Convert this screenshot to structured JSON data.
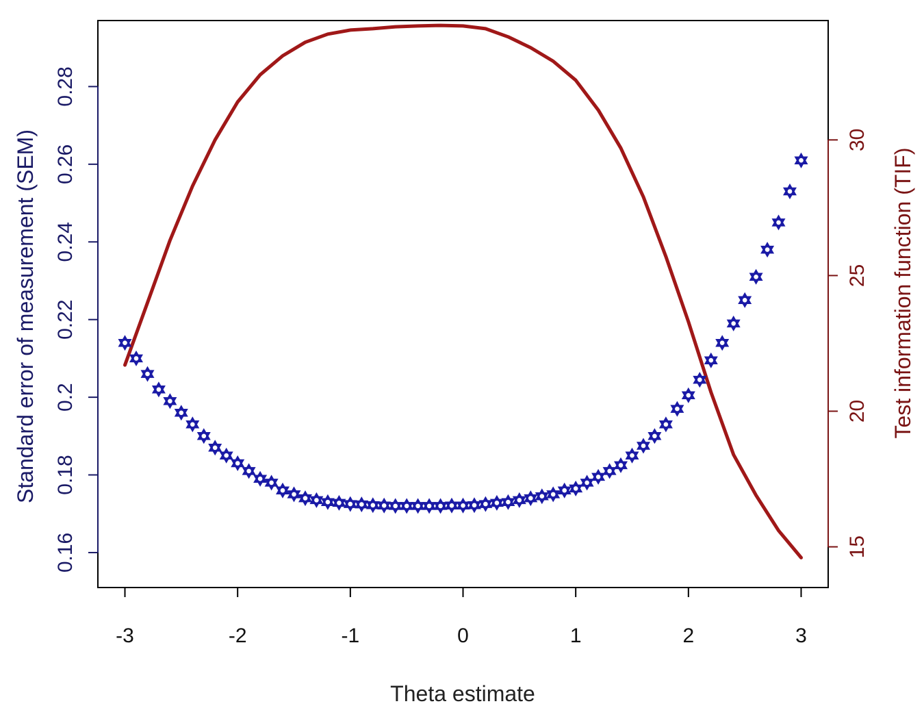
{
  "chart_data": {
    "type": "line",
    "title": "",
    "xlabel": "Theta estimate",
    "ylabel_left": "Standard error of measurement (SEM)",
    "ylabel_right": "Test information function (TIF)",
    "xlim": [
      -3.24,
      3.24
    ],
    "ylim_left": [
      0.151,
      0.297
    ],
    "ylim_right": [
      13.5,
      34.4
    ],
    "x_ticks": [
      -3,
      -2,
      -1,
      0,
      1,
      2,
      3
    ],
    "x_tick_labels": [
      "-3",
      "-2",
      "-1",
      "0",
      "1",
      "2",
      "3"
    ],
    "y_left_ticks": [
      0.16,
      0.18,
      0.2,
      0.22,
      0.24,
      0.26,
      0.28
    ],
    "y_left_tick_labels": [
      "0.16",
      "0.18",
      "0.2",
      "0.22",
      "0.24",
      "0.26",
      "0.28"
    ],
    "y_right_ticks": [
      15,
      20,
      25,
      30
    ],
    "y_right_tick_labels": [
      "15",
      "20",
      "25",
      "30"
    ],
    "colors": {
      "sem": "#1a1aa6",
      "tif": "#a01818",
      "left_axis": "#1a1a66",
      "right_axis": "#7a1414",
      "frame": "#000000"
    },
    "series": [
      {
        "axis": "left",
        "style": "points",
        "x": [
          -3.0,
          -2.9,
          -2.8,
          -2.7,
          -2.6,
          -2.5,
          -2.4,
          -2.3,
          -2.2,
          -2.1,
          -2.0,
          -1.9,
          -1.8,
          -1.7,
          -1.6,
          -1.5,
          -1.4,
          -1.3,
          -1.2,
          -1.1,
          -1.0,
          -0.9,
          -0.8,
          -0.7,
          -0.6,
          -0.5,
          -0.4,
          -0.3,
          -0.2,
          -0.1,
          0.0,
          0.1,
          0.2,
          0.3,
          0.4,
          0.5,
          0.6,
          0.7,
          0.8,
          0.9,
          1.0,
          1.1,
          1.2,
          1.3,
          1.4,
          1.5,
          1.6,
          1.7,
          1.8,
          1.9,
          2.0,
          2.1,
          2.2,
          2.3,
          2.4,
          2.5,
          2.6,
          2.7,
          2.8,
          2.9,
          3.0
        ],
        "y": [
          0.214,
          0.21,
          0.206,
          0.202,
          0.199,
          0.196,
          0.193,
          0.19,
          0.187,
          0.185,
          0.183,
          0.181,
          0.179,
          0.178,
          0.176,
          0.175,
          0.174,
          0.1735,
          0.173,
          0.1728,
          0.1725,
          0.1724,
          0.1722,
          0.1721,
          0.172,
          0.172,
          0.172,
          0.172,
          0.172,
          0.1721,
          0.1721,
          0.1722,
          0.1725,
          0.1728,
          0.173,
          0.1735,
          0.174,
          0.1745,
          0.175,
          0.176,
          0.1765,
          0.178,
          0.1795,
          0.181,
          0.1825,
          0.185,
          0.1875,
          0.19,
          0.193,
          0.197,
          0.2005,
          0.2045,
          0.2095,
          0.214,
          0.219,
          0.225,
          0.231,
          0.238,
          0.245,
          0.253,
          0.261
        ]
      },
      {
        "axis": "right",
        "style": "line",
        "x": [
          -3.0,
          -2.8,
          -2.6,
          -2.4,
          -2.2,
          -2.0,
          -1.8,
          -1.6,
          -1.4,
          -1.2,
          -1.0,
          -0.8,
          -0.6,
          -0.4,
          -0.2,
          0.0,
          0.2,
          0.4,
          0.6,
          0.8,
          1.0,
          1.2,
          1.4,
          1.6,
          1.8,
          2.0,
          2.2,
          2.4,
          2.6,
          2.8,
          3.0
        ],
        "y": [
          21.7,
          24.0,
          26.3,
          28.3,
          30.0,
          31.4,
          32.4,
          33.1,
          33.6,
          33.9,
          34.05,
          34.1,
          34.17,
          34.2,
          34.22,
          34.2,
          34.1,
          33.8,
          33.4,
          32.9,
          32.2,
          31.1,
          29.7,
          27.9,
          25.7,
          23.3,
          20.7,
          18.4,
          16.9,
          15.6,
          14.6
        ]
      }
    ]
  }
}
